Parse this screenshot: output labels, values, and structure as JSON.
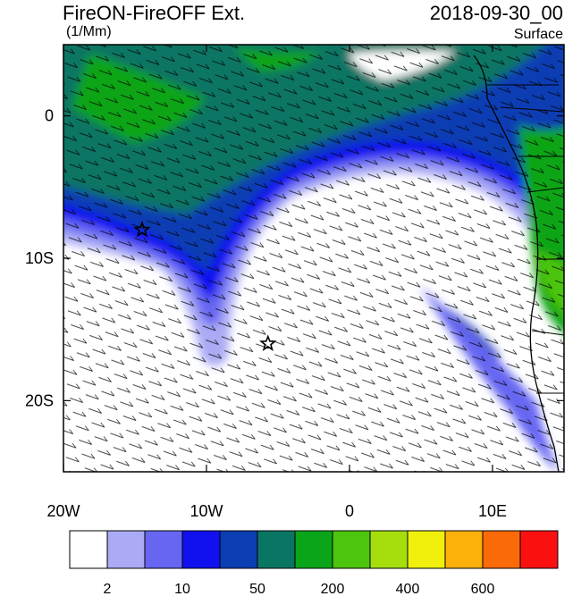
{
  "header": {
    "title": "FireON-FireOFF Ext.",
    "units": "(1/Mm)",
    "datetime": "2018-09-30_00",
    "level": "Surface"
  },
  "chart_data": {
    "type": "heatmap",
    "title": "FireON-FireOFF Ext.",
    "xlabel": "",
    "ylabel": "",
    "x_range": [
      -20,
      15
    ],
    "y_range": [
      -25,
      5
    ],
    "x_ticks": [
      {
        "value": -20,
        "label": "20W"
      },
      {
        "value": -10,
        "label": "10W"
      },
      {
        "value": 0,
        "label": "0"
      },
      {
        "value": 10,
        "label": "10E"
      }
    ],
    "y_ticks": [
      {
        "value": 0,
        "label": "0"
      },
      {
        "value": -10,
        "label": "10S"
      },
      {
        "value": -20,
        "label": "20S"
      }
    ],
    "stars": [
      {
        "lon": -14.5,
        "lat": -8.0
      },
      {
        "lon": -5.7,
        "lat": -16.0
      }
    ],
    "colorbar": {
      "colors": [
        "#ffffff",
        "#aaaaf5",
        "#6666f2",
        "#1111f0",
        "#0b3db3",
        "#0a7563",
        "#0aa519",
        "#4cc50e",
        "#a5de0c",
        "#f0f00c",
        "#fbb00a",
        "#fb6a08",
        "#fb1010"
      ],
      "labels": [
        {
          "after_index": 0,
          "text": "2"
        },
        {
          "after_index": 2,
          "text": "10"
        },
        {
          "after_index": 4,
          "text": "50"
        },
        {
          "after_index": 6,
          "text": "200"
        },
        {
          "after_index": 8,
          "text": "400"
        },
        {
          "after_index": 10,
          "text": "600"
        }
      ]
    }
  }
}
